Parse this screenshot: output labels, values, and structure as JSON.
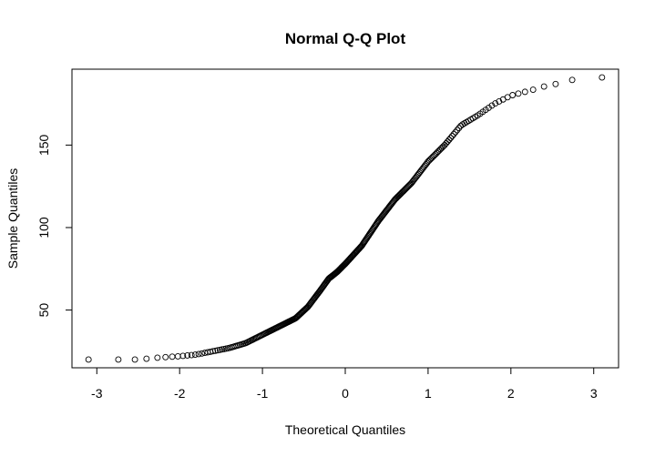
{
  "chart_data": {
    "type": "scatter",
    "title": "Normal Q-Q Plot",
    "xlabel": "Theoretical Quantiles",
    "ylabel": "Sample Quantiles",
    "xlim": [
      -3.3,
      3.3
    ],
    "ylim": [
      15,
      196
    ],
    "x_ticks": [
      -3,
      -2,
      -1,
      0,
      1,
      2,
      3
    ],
    "y_ticks": [
      50,
      100,
      150
    ],
    "grid": false,
    "legend": "none",
    "marker": "open-circle",
    "point_color": "#000000",
    "extreme_points": [
      {
        "x": -3.1,
        "y": 20
      },
      {
        "x": -2.74,
        "y": 20
      },
      {
        "x": -2.54,
        "y": 20
      },
      {
        "x": -2.4,
        "y": 20.5
      },
      {
        "x": 2.4,
        "y": 185.5
      },
      {
        "x": 2.54,
        "y": 187
      },
      {
        "x": 2.74,
        "y": 189.5
      },
      {
        "x": 3.1,
        "y": 191
      }
    ],
    "points_shown": 300,
    "curve": {
      "x": [
        -2.3,
        -2.0,
        -1.8,
        -1.6,
        -1.4,
        -1.2,
        -1.0,
        -0.8,
        -0.6,
        -0.45,
        -0.3,
        -0.2,
        -0.1,
        0.0,
        0.2,
        0.4,
        0.6,
        0.8,
        1.0,
        1.2,
        1.4,
        1.6,
        1.8,
        2.0,
        2.3
      ],
      "y": [
        21,
        22,
        23,
        25,
        27,
        30,
        35,
        40,
        45,
        52,
        62,
        69,
        73,
        78,
        89,
        104,
        117,
        127,
        140,
        150,
        162,
        168,
        175,
        180,
        184
      ]
    }
  }
}
